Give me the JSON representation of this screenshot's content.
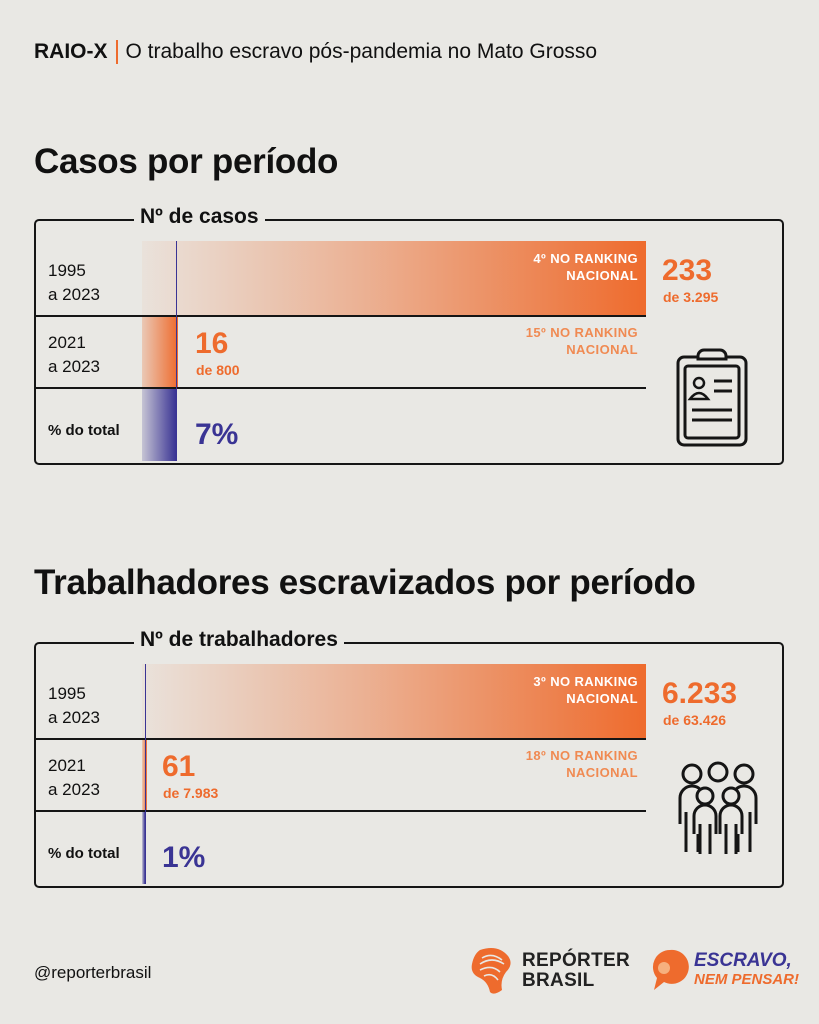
{
  "header": {
    "tag": "RAIO-X",
    "title": "O trabalho escravo pós-pandemia no Mato Grosso"
  },
  "colors": {
    "orange": "#ee6b2d",
    "purple": "#3a3494",
    "background": "#e9e8e4"
  },
  "chart_data": [
    {
      "type": "bar",
      "title": "Casos por período",
      "column_label": "Nº de casos",
      "categories": [
        "1995 a 2023",
        "2021 a 2023"
      ],
      "rows": [
        {
          "label_line1": "1995",
          "label_line2": "a 2023",
          "value": 233,
          "value_text": "233",
          "total_text": "de 3.295",
          "rank_line1": "4º NO RANKING",
          "rank_line2": "NACIONAL"
        },
        {
          "label_line1": "2021",
          "label_line2": "a 2023",
          "value": 16,
          "value_text": "16",
          "total_text": "de 800",
          "rank_line1": "15º NO RANKING",
          "rank_line2": "NACIONAL"
        }
      ],
      "percent": {
        "label": "% do total",
        "value": 7,
        "value_text": "7%"
      },
      "icon": "clipboard-icon"
    },
    {
      "type": "bar",
      "title": "Trabalhadores escravizados por período",
      "column_label": "Nº de trabalhadores",
      "categories": [
        "1995 a 2023",
        "2021 a 2023"
      ],
      "rows": [
        {
          "label_line1": "1995",
          "label_line2": "a 2023",
          "value": 6233,
          "value_text": "6.233",
          "total_text": "de 63.426",
          "rank_line1": "3º NO RANKING",
          "rank_line2": "NACIONAL"
        },
        {
          "label_line1": "2021",
          "label_line2": "a 2023",
          "value": 61,
          "value_text": "61",
          "total_text": "de 7.983",
          "rank_line1": "18º NO RANKING",
          "rank_line2": "NACIONAL"
        }
      ],
      "percent": {
        "label": "% do total",
        "value": 1,
        "value_text": "1%"
      },
      "icon": "people-group-icon"
    }
  ],
  "footer": {
    "handle": "@reporterbrasil",
    "logo1_line1": "REPÓRTER",
    "logo1_line2": "BRASIL",
    "logo2_line1": "ESCRAVO,",
    "logo2_line2": "NEM PENSAR!"
  }
}
